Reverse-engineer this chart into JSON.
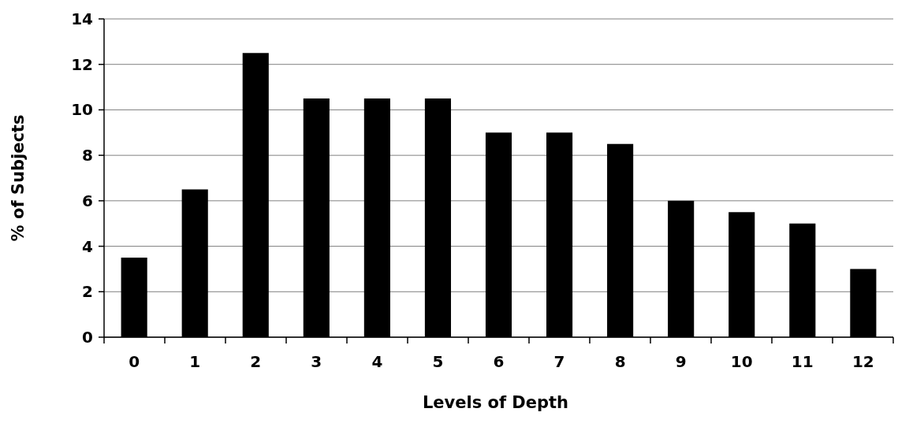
{
  "chart_data": {
    "type": "bar",
    "xlabel": "Levels of Depth",
    "ylabel": "% of Subjects",
    "categories": [
      "0",
      "1",
      "2",
      "3",
      "4",
      "5",
      "6",
      "7",
      "8",
      "9",
      "10",
      "11",
      "12"
    ],
    "values": [
      3.5,
      6.5,
      12.5,
      10.5,
      10.5,
      10.5,
      9,
      9,
      8.5,
      6,
      5.5,
      5,
      3
    ],
    "color": "#000000",
    "ylim": [
      0,
      14
    ],
    "yticks": [
      0,
      2,
      4,
      6,
      8,
      10,
      12,
      14
    ],
    "grid": "y"
  }
}
